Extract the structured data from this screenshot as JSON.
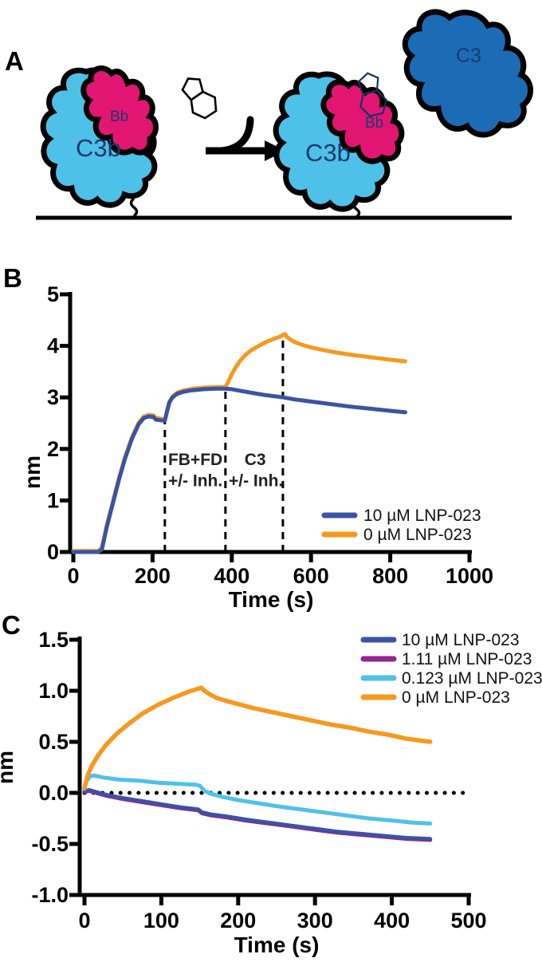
{
  "figure_title": "BLI complement alternative pathway inhibition figure",
  "panels": {
    "a": {
      "label": "A",
      "proteins": {
        "c3b_left": "C3b",
        "bb_left": "Bb",
        "c3b_right": "C3b",
        "bb_right": "Bb",
        "c3": "C3"
      },
      "icons": [
        "small-molecule-icon",
        "reaction-arrow-icon",
        "inhibition-tbar-icon",
        "sensor-surface-line",
        "tether-squiggle-icon"
      ],
      "colors": {
        "c3b": "#4ec1e9",
        "bb": "#e31573",
        "c3": "#1b6cb5",
        "inhibit": "#ed1c24",
        "outline": "#000000",
        "label_text": "#1a3a6b"
      }
    },
    "b": {
      "label": "B"
    },
    "c": {
      "label": "C"
    }
  },
  "chart_data": [
    {
      "id": "B",
      "type": "line",
      "title": "",
      "xlabel": "Time (s)",
      "ylabel": "nm",
      "xlim": [
        0,
        1000
      ],
      "ylim": [
        0,
        5
      ],
      "xticks": [
        0,
        200,
        400,
        600,
        800,
        1000
      ],
      "xtick_labels": [
        "0",
        "200",
        "400",
        "600",
        "800",
        "1000"
      ],
      "yticks": [
        0,
        1,
        2,
        3,
        4,
        5
      ],
      "ytick_labels": [
        "0",
        "1",
        "2",
        "3",
        "4",
        "5"
      ],
      "grid": false,
      "legend_position": "bottom-right",
      "annotations": {
        "dashed_vlines": [
          {
            "t": 231,
            "v_top": 2.55
          },
          {
            "t": 384,
            "v_top": 3.17
          },
          {
            "t": 529,
            "v_top": 4.23
          }
        ],
        "texts": [
          {
            "text": "FB+FD",
            "t": 308,
            "v": 1.69
          },
          {
            "text": "+/- Inh.",
            "t": 308,
            "v": 1.28
          },
          {
            "text": "C3",
            "t": 459,
            "v": 1.69
          },
          {
            "text": "+/- Inh.",
            "t": 461,
            "v": 1.28
          }
        ]
      },
      "series": [
        {
          "name": "10 µM LNP-023",
          "color": "#3a53a4",
          "points": [
            [
              0,
              0
            ],
            [
              62,
              0
            ],
            [
              72,
              0.05
            ],
            [
              85,
              0.5
            ],
            [
              100,
              0.95
            ],
            [
              115,
              1.4
            ],
            [
              130,
              1.8
            ],
            [
              148,
              2.2
            ],
            [
              165,
              2.48
            ],
            [
              178,
              2.6
            ],
            [
              190,
              2.63
            ],
            [
              202,
              2.62
            ],
            [
              208,
              2.57
            ],
            [
              228,
              2.55
            ],
            [
              231,
              2.55
            ],
            [
              236,
              2.72
            ],
            [
              242,
              2.9
            ],
            [
              250,
              3.0
            ],
            [
              262,
              3.07
            ],
            [
              278,
              3.11
            ],
            [
              300,
              3.14
            ],
            [
              330,
              3.16
            ],
            [
              360,
              3.17
            ],
            [
              384,
              3.17
            ],
            [
              400,
              3.16
            ],
            [
              420,
              3.13
            ],
            [
              450,
              3.09
            ],
            [
              480,
              3.05
            ],
            [
              510,
              3.02
            ],
            [
              530,
              3.0
            ],
            [
              560,
              2.96
            ],
            [
              600,
              2.92
            ],
            [
              650,
              2.87
            ],
            [
              700,
              2.82
            ],
            [
              750,
              2.78
            ],
            [
              800,
              2.74
            ],
            [
              838,
              2.71
            ]
          ]
        },
        {
          "name": "0 µM LNP-023",
          "color": "#f8981d",
          "points": [
            [
              0,
              0.02
            ],
            [
              62,
              0.02
            ],
            [
              72,
              0.08
            ],
            [
              85,
              0.53
            ],
            [
              100,
              0.98
            ],
            [
              115,
              1.43
            ],
            [
              130,
              1.83
            ],
            [
              148,
              2.23
            ],
            [
              165,
              2.51
            ],
            [
              178,
              2.63
            ],
            [
              190,
              2.66
            ],
            [
              202,
              2.65
            ],
            [
              208,
              2.6
            ],
            [
              228,
              2.58
            ],
            [
              232,
              2.58
            ],
            [
              238,
              2.76
            ],
            [
              244,
              2.93
            ],
            [
              252,
              3.03
            ],
            [
              264,
              3.1
            ],
            [
              280,
              3.14
            ],
            [
              302,
              3.17
            ],
            [
              332,
              3.19
            ],
            [
              362,
              3.2
            ],
            [
              384,
              3.2
            ],
            [
              390,
              3.28
            ],
            [
              398,
              3.42
            ],
            [
              408,
              3.56
            ],
            [
              420,
              3.7
            ],
            [
              434,
              3.82
            ],
            [
              450,
              3.92
            ],
            [
              468,
              4.0
            ],
            [
              488,
              4.08
            ],
            [
              508,
              4.14
            ],
            [
              522,
              4.18
            ],
            [
              534,
              4.23
            ],
            [
              540,
              4.17
            ],
            [
              548,
              4.12
            ],
            [
              560,
              4.07
            ],
            [
              578,
              4.02
            ],
            [
              600,
              3.97
            ],
            [
              630,
              3.92
            ],
            [
              665,
              3.87
            ],
            [
              700,
              3.83
            ],
            [
              740,
              3.79
            ],
            [
              790,
              3.74
            ],
            [
              838,
              3.7
            ]
          ]
        }
      ]
    },
    {
      "id": "C",
      "type": "line",
      "title": "",
      "xlabel": "Time (s)",
      "ylabel": "nm",
      "xlim": [
        0,
        500
      ],
      "ylim": [
        -1.0,
        1.5
      ],
      "xticks": [
        0,
        100,
        200,
        300,
        400,
        500
      ],
      "xtick_labels": [
        "0",
        "100",
        "200",
        "300",
        "400",
        "500"
      ],
      "yticks": [
        1.5,
        1.0,
        0.5,
        0.0,
        -0.5,
        -1.0
      ],
      "ytick_labels": [
        "1.5",
        "1.0",
        "0.5",
        "0.0",
        "-0.5",
        "-1.0"
      ],
      "grid": false,
      "legend_position": "top-right",
      "annotations": {
        "dotted_hline": {
          "v": 0.0,
          "t_start": 0,
          "t_end": 498
        }
      },
      "series": [
        {
          "name": "10 µM LNP-023",
          "color": "#3a53a4",
          "points": [
            [
              0,
              0.02
            ],
            [
              6,
              0.03
            ],
            [
              15,
              0.01
            ],
            [
              30,
              -0.02
            ],
            [
              50,
              -0.05
            ],
            [
              75,
              -0.08
            ],
            [
              100,
              -0.11
            ],
            [
              125,
              -0.14
            ],
            [
              148,
              -0.16
            ],
            [
              153,
              -0.19
            ],
            [
              165,
              -0.21
            ],
            [
              185,
              -0.23
            ],
            [
              210,
              -0.26
            ],
            [
              240,
              -0.29
            ],
            [
              270,
              -0.32
            ],
            [
              300,
              -0.35
            ],
            [
              330,
              -0.38
            ],
            [
              360,
              -0.4
            ],
            [
              390,
              -0.42
            ],
            [
              420,
              -0.44
            ],
            [
              450,
              -0.45
            ]
          ]
        },
        {
          "name": "1.11 µM LNP-023",
          "color": "#92278f",
          "points": [
            [
              0,
              0.01
            ],
            [
              6,
              0.02
            ],
            [
              15,
              0.0
            ],
            [
              30,
              -0.03
            ],
            [
              50,
              -0.06
            ],
            [
              75,
              -0.09
            ],
            [
              100,
              -0.12
            ],
            [
              125,
              -0.15
            ],
            [
              148,
              -0.17
            ],
            [
              153,
              -0.2
            ],
            [
              165,
              -0.22
            ],
            [
              185,
              -0.24
            ],
            [
              210,
              -0.27
            ],
            [
              240,
              -0.3
            ],
            [
              270,
              -0.33
            ],
            [
              300,
              -0.36
            ],
            [
              330,
              -0.39
            ],
            [
              360,
              -0.41
            ],
            [
              390,
              -0.43
            ],
            [
              420,
              -0.45
            ],
            [
              450,
              -0.46
            ]
          ]
        },
        {
          "name": "0.123 µM LNP-023",
          "color": "#4fc2e8",
          "points": [
            [
              0,
              0.04
            ],
            [
              3,
              0.12
            ],
            [
              7,
              0.16
            ],
            [
              12,
              0.17
            ],
            [
              25,
              0.15
            ],
            [
              45,
              0.13
            ],
            [
              70,
              0.12
            ],
            [
              95,
              0.1
            ],
            [
              120,
              0.09
            ],
            [
              145,
              0.08
            ],
            [
              150,
              0.07
            ],
            [
              156,
              0.02
            ],
            [
              165,
              -0.01
            ],
            [
              180,
              -0.04
            ],
            [
              200,
              -0.07
            ],
            [
              225,
              -0.1
            ],
            [
              250,
              -0.13
            ],
            [
              280,
              -0.16
            ],
            [
              310,
              -0.19
            ],
            [
              340,
              -0.22
            ],
            [
              370,
              -0.25
            ],
            [
              400,
              -0.27
            ],
            [
              425,
              -0.29
            ],
            [
              450,
              -0.3
            ]
          ]
        },
        {
          "name": "0 µM LNP-023",
          "color": "#f8981d",
          "points": [
            [
              0,
              0.05
            ],
            [
              4,
              0.17
            ],
            [
              10,
              0.27
            ],
            [
              18,
              0.37
            ],
            [
              28,
              0.47
            ],
            [
              42,
              0.58
            ],
            [
              58,
              0.68
            ],
            [
              76,
              0.78
            ],
            [
              95,
              0.86
            ],
            [
              115,
              0.93
            ],
            [
              135,
              0.99
            ],
            [
              148,
              1.02
            ],
            [
              152,
              1.03
            ],
            [
              156,
              1.0
            ],
            [
              162,
              0.97
            ],
            [
              172,
              0.93
            ],
            [
              185,
              0.9
            ],
            [
              200,
              0.87
            ],
            [
              220,
              0.83
            ],
            [
              245,
              0.79
            ],
            [
              270,
              0.75
            ],
            [
              295,
              0.71
            ],
            [
              320,
              0.67
            ],
            [
              345,
              0.64
            ],
            [
              370,
              0.6
            ],
            [
              395,
              0.57
            ],
            [
              420,
              0.53
            ],
            [
              450,
              0.5
            ]
          ]
        }
      ]
    }
  ]
}
